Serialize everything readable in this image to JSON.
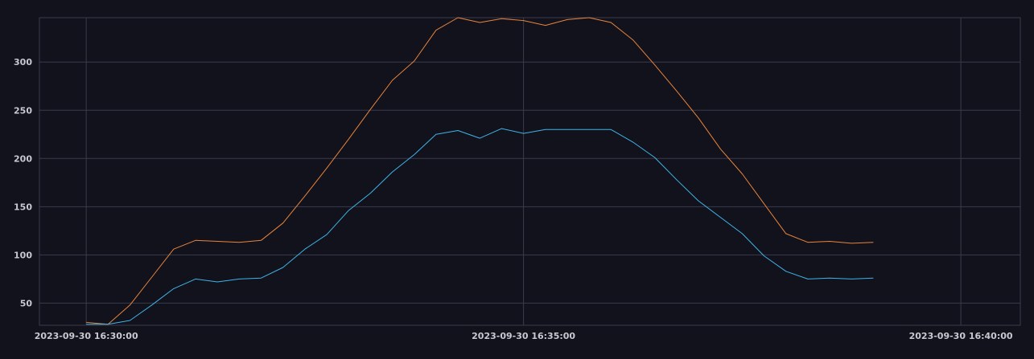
{
  "chart_data": {
    "type": "line",
    "title": "",
    "xlabel": "",
    "ylabel": "",
    "x_tick_labels": [
      "2023-09-30 16:30:00",
      "2023-09-30 16:35:00",
      "2023-09-30 16:40:00"
    ],
    "x_range_minutes": [
      -0.535,
      10.68
    ],
    "y_ticks": [
      50,
      100,
      150,
      200,
      250,
      300
    ],
    "ylim": [
      27,
      346
    ],
    "grid": true,
    "legend": "none",
    "x_minutes": [
      0,
      0.25,
      0.5,
      0.75,
      1.0,
      1.25,
      1.5,
      1.75,
      2.0,
      2.25,
      2.5,
      2.75,
      3.0,
      3.25,
      3.5,
      3.75,
      4.0,
      4.25,
      4.5,
      4.75,
      5.0,
      5.25,
      5.5,
      5.75,
      6.0,
      6.25,
      6.5,
      6.75,
      7.0,
      7.25,
      7.5,
      7.75,
      8.0,
      8.25,
      8.5,
      8.75,
      9.0
    ],
    "series": [
      {
        "color": "#e8843a",
        "values": [
          30,
          28,
          48,
          77,
          106,
          115,
          114,
          113,
          115,
          133,
          161,
          190,
          220,
          251,
          281,
          301,
          333,
          346,
          341,
          345,
          343,
          338,
          344,
          346,
          341,
          323,
          297,
          270,
          242,
          210,
          184,
          153,
          122,
          113,
          114,
          112,
          113
        ]
      },
      {
        "color": "#3fb3e6",
        "values": [
          28,
          28,
          32,
          48,
          65,
          75,
          72,
          75,
          76,
          87,
          106,
          121,
          146,
          164,
          186,
          204,
          225,
          229,
          221,
          231,
          226,
          230,
          230,
          230,
          230,
          217,
          201,
          178,
          156,
          139,
          122,
          99,
          83,
          75,
          76,
          75,
          76
        ]
      }
    ],
    "colors": {
      "background": "#12121d",
      "grid": "#3a3b4c",
      "tick_label": "#c8c9d0"
    }
  }
}
